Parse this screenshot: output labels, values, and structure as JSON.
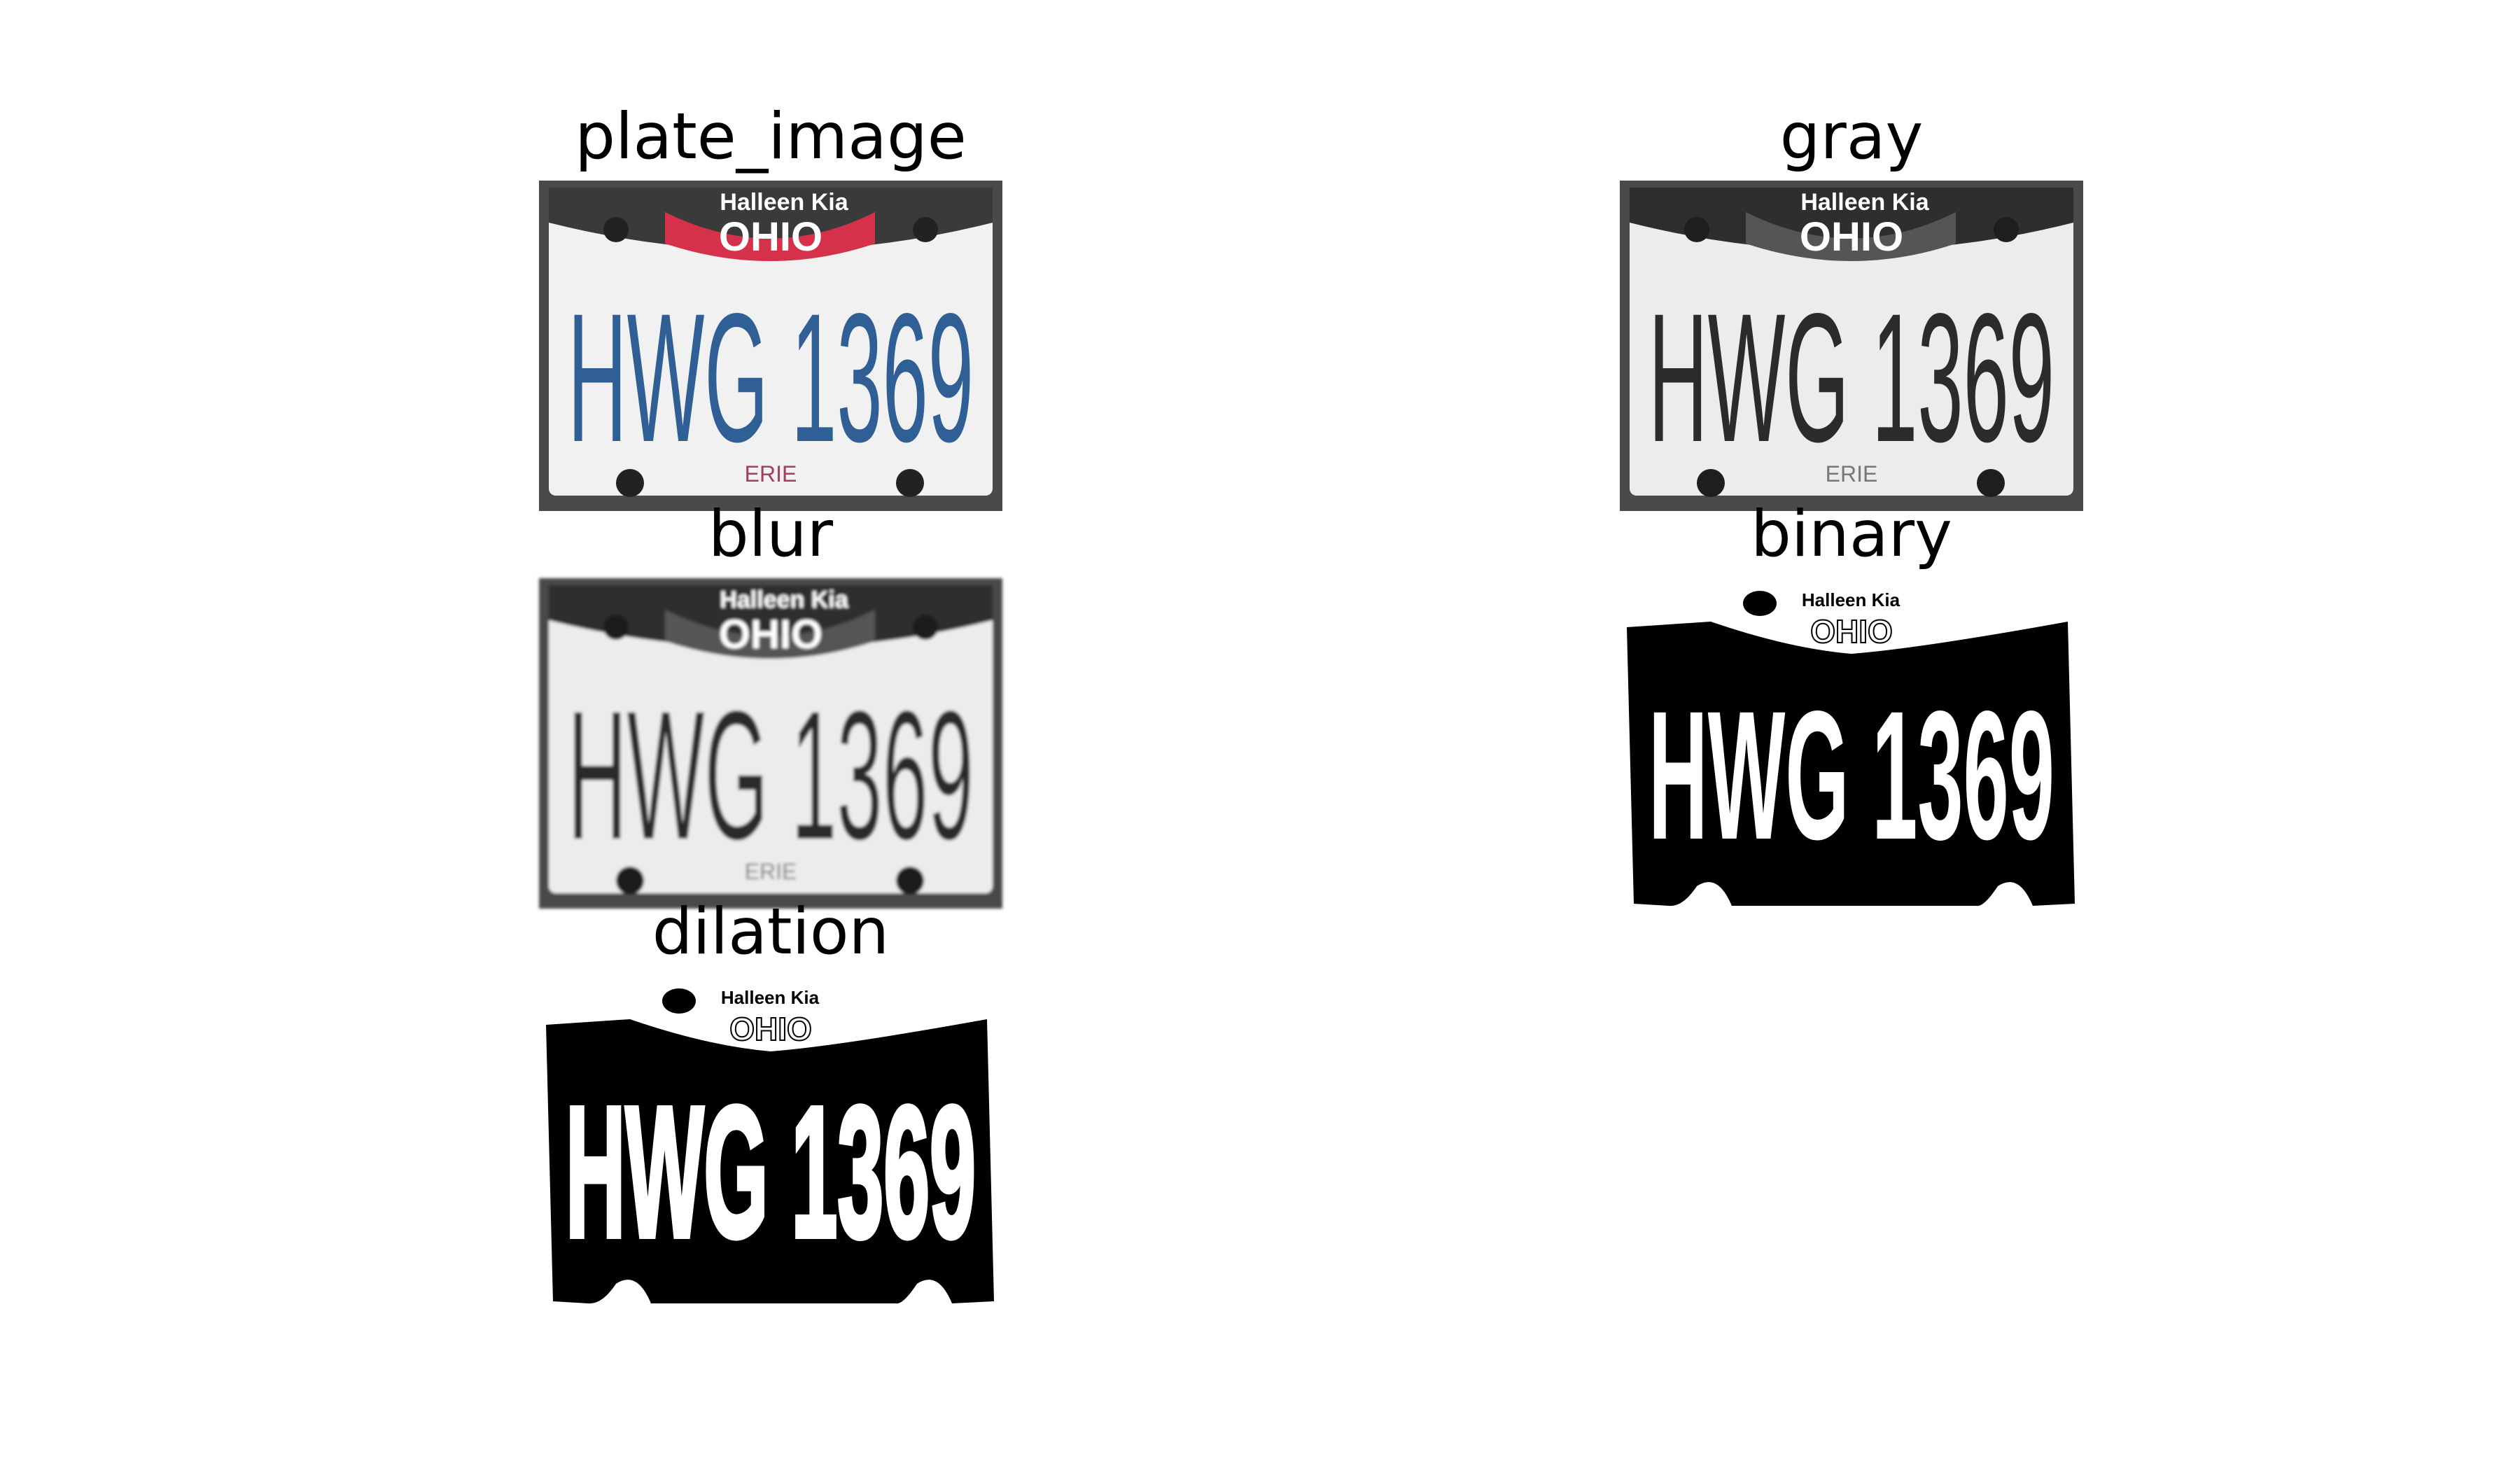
{
  "figure": {
    "panels": [
      {
        "title": "plate_image",
        "style": "color"
      },
      {
        "title": "gray",
        "style": "gray"
      },
      {
        "title": "blur",
        "style": "blur"
      },
      {
        "title": "binary",
        "style": "binary"
      },
      {
        "title": "dilation",
        "style": "dilation"
      }
    ]
  },
  "plate": {
    "dealer": "Halleen Kia",
    "state": "OHIO",
    "registration": "HWG 1369",
    "county": "ERIE"
  },
  "colors": {
    "plate_text_blue": "#2f5f94",
    "state_band_red": "#d6314a",
    "frame_dark": "#3a3a3a",
    "gray_text": "#2b2b2b"
  }
}
